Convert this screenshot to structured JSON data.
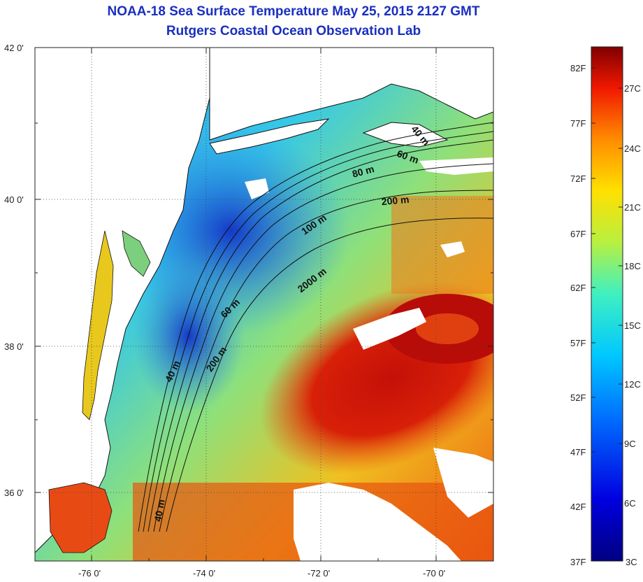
{
  "title": {
    "line1": "NOAA-18 Sea Surface Temperature May 25, 2015 2127 GMT",
    "line2": "Rutgers Coastal Ocean Observation Lab"
  },
  "axes": {
    "lon_ticks": [
      "-76 0'",
      "-74 0'",
      "-72 0'",
      "-70 0'"
    ],
    "lat_ticks": [
      "42 0'",
      "40 0'",
      "38 0'",
      "36 0'"
    ]
  },
  "depth_contour_labels": [
    "40 m",
    "60 m",
    "80 m",
    "200 m",
    "100 m",
    "2000 m",
    "60 m",
    "200 m",
    "40 m",
    "40 m"
  ],
  "colorbar": {
    "fahrenheit_labels": [
      "82F",
      "77F",
      "72F",
      "67F",
      "62F",
      "57F",
      "52F",
      "47F",
      "42F",
      "37F"
    ],
    "celsius_labels": [
      "27C",
      "24C",
      "21C",
      "18C",
      "15C",
      "12C",
      "9C",
      "6C",
      "3C"
    ]
  },
  "colors": {
    "title": "#1a2fbf",
    "land": "#ffffff",
    "cold": "#1a4fd8",
    "warm": "#d81808"
  }
}
